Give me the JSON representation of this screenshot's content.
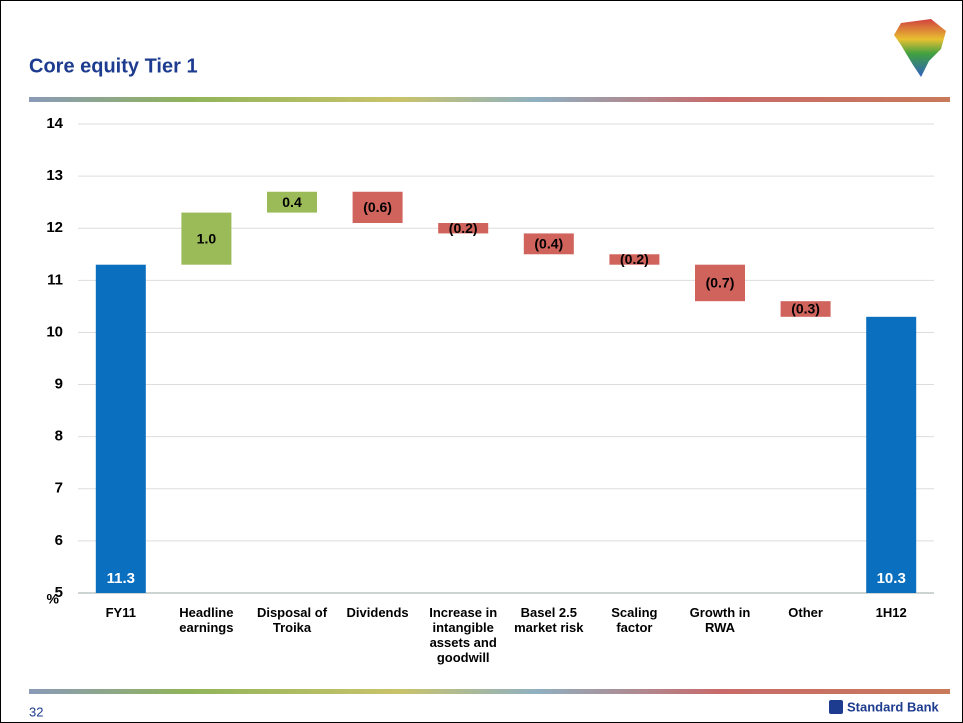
{
  "chart_data": {
    "type": "waterfall",
    "title": "Core equity Tier 1",
    "y_unit": "%",
    "categories": [
      "FY11",
      "Headline earnings",
      "Disposal of Troika",
      "Dividends",
      "Increase in intangible assets and goodwill",
      "Basel 2.5 market risk",
      "Scaling factor",
      "Growth in RWA",
      "Other",
      "1H12"
    ],
    "values": [
      11.3,
      1.0,
      0.4,
      -0.6,
      -0.2,
      -0.4,
      -0.2,
      -0.7,
      -0.3,
      10.3
    ],
    "value_labels": [
      "11.3",
      "1.0",
      "0.4",
      "(0.6)",
      "(0.2)",
      "(0.4)",
      "(0.2)",
      "(0.7)",
      "(0.3)",
      "10.3"
    ],
    "colors": [
      "#0b6fc0",
      "#9bbb59",
      "#9bbb59",
      "#d0635c",
      "#d0635c",
      "#d0635c",
      "#d0635c",
      "#d0635c",
      "#d0635c",
      "#0b6fc0"
    ],
    "ylim": [
      5,
      14
    ],
    "yticks": [
      5,
      6,
      7,
      8,
      9,
      10,
      11,
      12,
      13,
      14
    ],
    "grid": true
  },
  "footer": {
    "page": "32",
    "brand": "Standard Bank"
  }
}
